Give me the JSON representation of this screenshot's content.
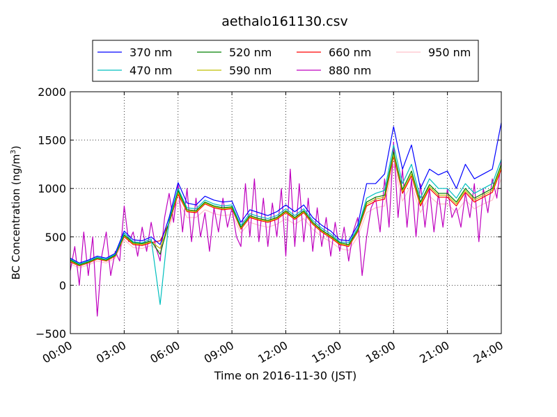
{
  "chart_data": {
    "type": "line",
    "title": "aethalo161130.csv",
    "xlabel": "Time on 2016-11-30 (JST)",
    "ylabel_main": "BC Concentration (ng/m",
    "ylabel_sup": "3",
    "ylabel_end": ")",
    "xlim": [
      0,
      24
    ],
    "ylim": [
      -500,
      2000
    ],
    "x_ticks": [
      0,
      3,
      6,
      9,
      12,
      15,
      18,
      21,
      24
    ],
    "x_tick_labels": [
      "00:00",
      "03:00",
      "06:00",
      "09:00",
      "12:00",
      "15:00",
      "18:00",
      "21:00",
      "24:00"
    ],
    "y_ticks": [
      -500,
      0,
      500,
      1000,
      1500,
      2000
    ],
    "y_tick_labels": [
      "−500",
      "0",
      "500",
      "1000",
      "1500",
      "2000"
    ],
    "grid": true,
    "legend_position": "top-center",
    "series": [
      {
        "name": "370 nm",
        "color": "#0000ff",
        "x": [
          0.0,
          0.5,
          1.0,
          1.5,
          2.0,
          2.5,
          3.0,
          3.5,
          4.0,
          4.5,
          5.0,
          5.5,
          6.0,
          6.5,
          7.0,
          7.5,
          8.0,
          8.5,
          9.0,
          9.5,
          10.0,
          10.5,
          11.0,
          11.5,
          12.0,
          12.5,
          13.0,
          13.5,
          14.0,
          14.5,
          15.0,
          15.5,
          16.0,
          16.5,
          17.0,
          17.5,
          18.0,
          18.5,
          19.0,
          19.5,
          20.0,
          20.5,
          21.0,
          21.5,
          22.0,
          22.5,
          23.0,
          23.5,
          24.0
        ],
        "values": [
          280,
          230,
          260,
          300,
          280,
          330,
          560,
          470,
          460,
          500,
          420,
          700,
          1060,
          850,
          830,
          920,
          880,
          860,
          870,
          650,
          780,
          750,
          720,
          760,
          830,
          760,
          830,
          700,
          620,
          560,
          470,
          460,
          620,
          1050,
          1050,
          1150,
          1640,
          1200,
          1450,
          1000,
          1200,
          1140,
          1180,
          1000,
          1250,
          1100,
          1150,
          1200,
          1680
        ]
      },
      {
        "name": "470 nm",
        "color": "#00bfbf",
        "x": [
          0.0,
          0.5,
          1.0,
          1.5,
          2.0,
          2.5,
          3.0,
          3.5,
          4.0,
          4.5,
          5.0,
          5.5,
          6.0,
          6.5,
          7.0,
          7.5,
          8.0,
          8.5,
          9.0,
          9.5,
          10.0,
          10.5,
          11.0,
          11.5,
          12.0,
          12.5,
          13.0,
          13.5,
          14.0,
          14.5,
          15.0,
          15.5,
          16.0,
          16.5,
          17.0,
          17.5,
          18.0,
          18.5,
          19.0,
          19.5,
          20.0,
          20.5,
          21.0,
          21.5,
          22.0,
          22.5,
          23.0,
          23.5,
          24.0
        ],
        "values": [
          270,
          220,
          250,
          290,
          270,
          320,
          540,
          450,
          440,
          480,
          -200,
          680,
          1000,
          800,
          790,
          880,
          840,
          820,
          830,
          620,
          740,
          710,
          690,
          720,
          790,
          720,
          790,
          670,
          590,
          530,
          450,
          440,
          590,
          900,
          950,
          980,
          1450,
          1050,
          1250,
          900,
          1100,
          1000,
          1000,
          900,
          1050,
          950,
          1000,
          1050,
          1300
        ]
      },
      {
        "name": "520 nm",
        "color": "#008000",
        "x": [
          0.0,
          0.5,
          1.0,
          1.5,
          2.0,
          2.5,
          3.0,
          3.5,
          4.0,
          4.5,
          5.0,
          5.5,
          6.0,
          6.5,
          7.0,
          7.5,
          8.0,
          8.5,
          9.0,
          9.5,
          10.0,
          10.5,
          11.0,
          11.5,
          12.0,
          12.5,
          13.0,
          13.5,
          14.0,
          14.5,
          15.0,
          15.5,
          16.0,
          16.5,
          17.0,
          17.5,
          18.0,
          18.5,
          19.0,
          19.5,
          20.0,
          20.5,
          21.0,
          21.5,
          22.0,
          22.5,
          23.0,
          23.5,
          24.0
        ],
        "values": [
          260,
          210,
          240,
          280,
          260,
          310,
          520,
          440,
          430,
          460,
          320,
          660,
          980,
          780,
          770,
          860,
          820,
          800,
          810,
          600,
          720,
          690,
          670,
          700,
          770,
          700,
          770,
          650,
          570,
          510,
          440,
          420,
          570,
          860,
          910,
          930,
          1380,
          990,
          1180,
          860,
          1040,
          950,
          950,
          860,
          1000,
          900,
          950,
          1000,
          1250
        ]
      },
      {
        "name": "590 nm",
        "color": "#bfbf00",
        "x": [
          0.0,
          0.5,
          1.0,
          1.5,
          2.0,
          2.5,
          3.0,
          3.5,
          4.0,
          4.5,
          5.0,
          5.5,
          6.0,
          6.5,
          7.0,
          7.5,
          8.0,
          8.5,
          9.0,
          9.5,
          10.0,
          10.5,
          11.0,
          11.5,
          12.0,
          12.5,
          13.0,
          13.5,
          14.0,
          14.5,
          15.0,
          15.5,
          16.0,
          16.5,
          17.0,
          17.5,
          18.0,
          18.5,
          19.0,
          19.5,
          20.0,
          20.5,
          21.0,
          21.5,
          22.0,
          22.5,
          23.0,
          23.5,
          24.0
        ],
        "values": [
          250,
          205,
          235,
          275,
          255,
          305,
          510,
          430,
          420,
          450,
          380,
          650,
          960,
          770,
          760,
          850,
          810,
          790,
          800,
          590,
          710,
          680,
          660,
          690,
          760,
          690,
          760,
          640,
          560,
          500,
          430,
          410,
          560,
          840,
          890,
          910,
          1350,
          970,
          1150,
          840,
          1020,
          930,
          930,
          840,
          980,
          880,
          930,
          980,
          1220
        ]
      },
      {
        "name": "660 nm",
        "color": "#ff0000",
        "x": [
          0.0,
          0.5,
          1.0,
          1.5,
          2.0,
          2.5,
          3.0,
          3.5,
          4.0,
          4.5,
          5.0,
          5.5,
          6.0,
          6.5,
          7.0,
          7.5,
          8.0,
          8.5,
          9.0,
          9.5,
          10.0,
          10.5,
          11.0,
          11.5,
          12.0,
          12.5,
          13.0,
          13.5,
          14.0,
          14.5,
          15.0,
          15.5,
          16.0,
          16.5,
          17.0,
          17.5,
          18.0,
          18.5,
          19.0,
          19.5,
          20.0,
          20.5,
          21.0,
          21.5,
          22.0,
          22.5,
          23.0,
          23.5,
          24.0
        ],
        "values": [
          240,
          200,
          230,
          270,
          250,
          300,
          500,
          420,
          410,
          440,
          460,
          640,
          940,
          760,
          750,
          840,
          800,
          780,
          790,
          580,
          700,
          670,
          650,
          680,
          750,
          680,
          750,
          630,
          550,
          490,
          420,
          400,
          550,
          820,
          870,
          890,
          1330,
          950,
          1130,
          820,
          1000,
          910,
          910,
          820,
          960,
          860,
          910,
          960,
          1200
        ]
      },
      {
        "name": "880 nm",
        "color": "#bf00bf",
        "x": [
          0.0,
          0.25,
          0.5,
          0.75,
          1.0,
          1.25,
          1.5,
          1.75,
          2.0,
          2.25,
          2.5,
          2.75,
          3.0,
          3.25,
          3.5,
          3.75,
          4.0,
          4.25,
          4.5,
          4.75,
          5.0,
          5.25,
          5.5,
          5.75,
          6.0,
          6.25,
          6.5,
          6.75,
          7.0,
          7.25,
          7.5,
          7.75,
          8.0,
          8.25,
          8.5,
          8.75,
          9.0,
          9.25,
          9.5,
          9.75,
          10.0,
          10.25,
          10.5,
          10.75,
          11.0,
          11.25,
          11.5,
          11.75,
          12.0,
          12.25,
          12.5,
          12.75,
          13.0,
          13.25,
          13.5,
          13.75,
          14.0,
          14.25,
          14.5,
          14.75,
          15.0,
          15.25,
          15.5,
          15.75,
          16.0,
          16.25,
          16.5,
          16.75,
          17.0,
          17.25,
          17.5,
          17.75,
          18.0,
          18.25,
          18.5,
          18.75,
          19.0,
          19.25,
          19.5,
          19.75,
          20.0,
          20.25,
          20.5,
          20.75,
          21.0,
          21.25,
          21.5,
          21.75,
          22.0,
          22.25,
          22.5,
          22.75,
          23.0,
          23.25,
          23.5,
          23.75,
          24.0
        ],
        "values": [
          150,
          400,
          0,
          550,
          100,
          500,
          -320,
          300,
          550,
          100,
          350,
          250,
          820,
          450,
          550,
          300,
          600,
          350,
          650,
          400,
          250,
          700,
          950,
          650,
          1050,
          550,
          1000,
          450,
          900,
          500,
          750,
          350,
          800,
          550,
          900,
          600,
          800,
          500,
          400,
          1050,
          500,
          1100,
          450,
          900,
          400,
          850,
          500,
          1000,
          300,
          1200,
          400,
          1050,
          450,
          900,
          350,
          800,
          400,
          700,
          300,
          650,
          350,
          600,
          250,
          550,
          700,
          100,
          500,
          800,
          900,
          550,
          1100,
          600,
          1480,
          700,
          1200,
          600,
          1100,
          500,
          1050,
          600,
          1000,
          550,
          950,
          600,
          1000,
          700,
          800,
          600,
          950,
          700,
          1050,
          450,
          1000,
          750,
          1100,
          900,
          1300
        ]
      },
      {
        "name": "950 nm",
        "color": "#ffc0cb",
        "x": [
          0.0,
          0.5,
          1.0,
          1.5,
          2.0,
          2.5,
          3.0,
          3.5,
          4.0,
          4.5,
          5.0,
          5.5,
          6.0,
          6.5,
          7.0,
          7.5,
          8.0,
          8.5,
          9.0,
          9.5,
          10.0,
          10.5,
          11.0,
          11.5,
          12.0,
          12.5,
          13.0,
          13.5,
          14.0,
          14.5,
          15.0,
          15.5,
          16.0,
          16.5,
          17.0,
          17.5,
          18.0,
          18.5,
          19.0,
          19.5,
          20.0,
          20.5,
          21.0,
          21.5,
          22.0,
          22.5,
          23.0,
          23.5,
          24.0
        ],
        "values": [
          220,
          180,
          210,
          250,
          230,
          280,
          470,
          390,
          380,
          410,
          350,
          600,
          880,
          700,
          700,
          780,
          740,
          720,
          730,
          540,
          650,
          620,
          600,
          630,
          690,
          630,
          690,
          580,
          500,
          450,
          380,
          360,
          500,
          750,
          800,
          820,
          1250,
          870,
          1040,
          750,
          920,
          840,
          840,
          750,
          880,
          790,
          840,
          880,
          1100
        ]
      }
    ]
  }
}
